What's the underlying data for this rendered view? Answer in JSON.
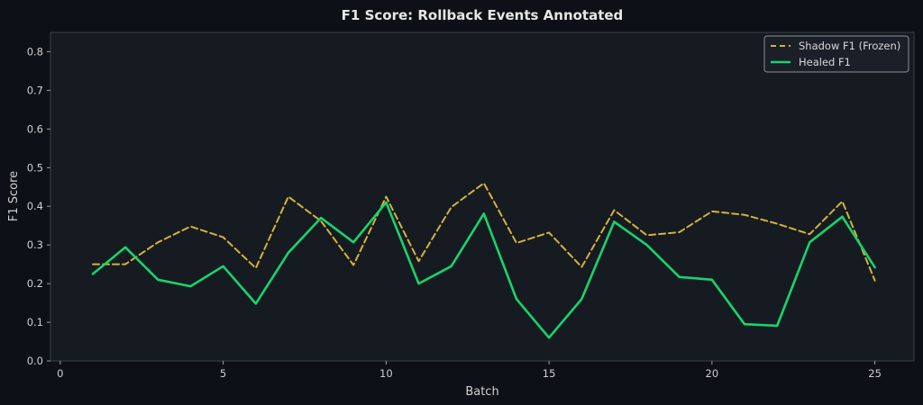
{
  "chart_data": {
    "type": "line",
    "title": "F1 Score: Rollback Events Annotated",
    "xlabel": "Batch",
    "ylabel": "F1 Score",
    "xlim": [
      -0.3,
      26.2
    ],
    "ylim": [
      0.0,
      0.85
    ],
    "xticks": [
      0,
      5,
      10,
      15,
      20,
      25
    ],
    "yticks": [
      0.0,
      0.1,
      0.2,
      0.3,
      0.4,
      0.5,
      0.6,
      0.7,
      0.8
    ],
    "grid": false,
    "legend_position": "top-right",
    "x": [
      1,
      2,
      3,
      4,
      5,
      6,
      7,
      8,
      9,
      10,
      11,
      12,
      13,
      14,
      15,
      16,
      17,
      18,
      19,
      20,
      21,
      22,
      23,
      24,
      25
    ],
    "series": [
      {
        "name": "Shadow F1 (Frozen)",
        "style": "dashed",
        "color": "#d4b23c",
        "values": [
          0.25,
          0.25,
          0.307,
          0.348,
          0.32,
          0.24,
          0.425,
          0.362,
          0.248,
          0.425,
          0.258,
          0.398,
          0.46,
          0.305,
          0.332,
          0.243,
          0.39,
          0.325,
          0.333,
          0.387,
          0.378,
          0.355,
          0.328,
          0.413,
          0.208
        ]
      },
      {
        "name": "Healed F1",
        "style": "solid",
        "color": "#19d36b",
        "values": [
          0.225,
          0.294,
          0.21,
          0.193,
          0.245,
          0.148,
          0.28,
          0.37,
          0.307,
          0.41,
          0.2,
          0.245,
          0.381,
          0.16,
          0.06,
          0.16,
          0.36,
          0.3,
          0.217,
          0.21,
          0.095,
          0.091,
          0.307,
          0.373,
          0.242
        ]
      }
    ]
  }
}
